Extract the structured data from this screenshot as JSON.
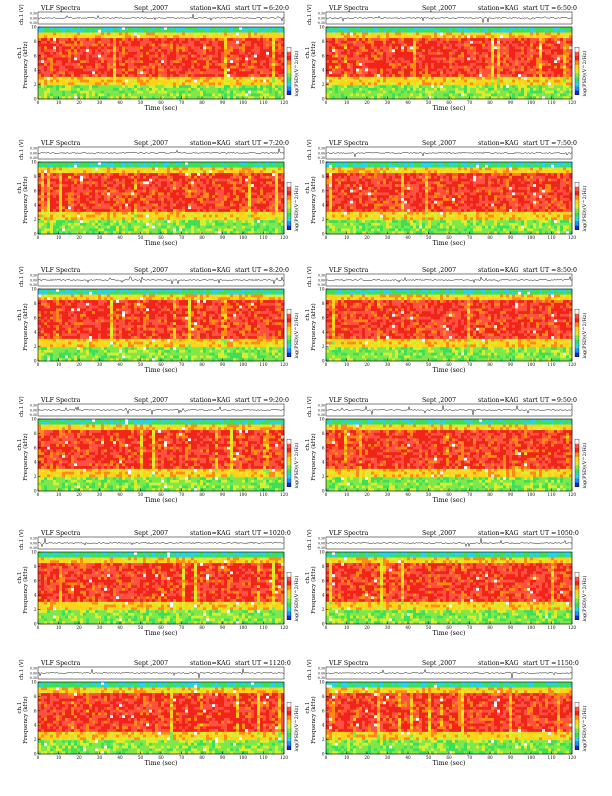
{
  "page": {
    "header": {
      "title": "VLF Spectra",
      "date": "Sept ,2007",
      "station": "station=KAG",
      "start_prefix": "start UT ="
    },
    "labels": {
      "waveform_axis": "ch.1 (V)",
      "waveform_ticks": [
        "0.30",
        "0.00",
        "-0.30"
      ],
      "freq_axis_upper": "ch.1",
      "freq_axis": "Frequency (kHz)",
      "time_axis": "Time (sec)",
      "colorbar_axis": "log(PSD)(V^2/Hz)"
    }
  },
  "chart_data": [
    {
      "type": "heatmap",
      "panel": 1,
      "start_ut": "6:20:0",
      "x": [
        0,
        120
      ],
      "ylim": [
        0,
        10
      ],
      "xticks": [
        0,
        10,
        20,
        30,
        40,
        50,
        60,
        70,
        80,
        90,
        100,
        110,
        120
      ],
      "yticks": [
        0,
        2,
        4,
        6,
        8,
        10
      ]
    },
    {
      "type": "heatmap",
      "panel": 2,
      "start_ut": "6:50:0",
      "x": [
        0,
        120
      ],
      "ylim": [
        0,
        10
      ],
      "xticks": [
        0,
        10,
        20,
        30,
        40,
        50,
        60,
        70,
        80,
        90,
        100,
        110,
        120
      ],
      "yticks": [
        0,
        2,
        4,
        6,
        8,
        10
      ]
    },
    {
      "type": "heatmap",
      "panel": 3,
      "start_ut": "7:20:0",
      "x": [
        0,
        120
      ],
      "ylim": [
        0,
        10
      ],
      "xticks": [
        0,
        10,
        20,
        30,
        40,
        50,
        60,
        70,
        80,
        90,
        100,
        110,
        120
      ],
      "yticks": [
        0,
        2,
        4,
        6,
        8,
        10
      ]
    },
    {
      "type": "heatmap",
      "panel": 4,
      "start_ut": "7:50:0",
      "x": [
        0,
        120
      ],
      "ylim": [
        0,
        10
      ],
      "xticks": [
        0,
        10,
        20,
        30,
        40,
        50,
        60,
        70,
        80,
        90,
        100,
        110,
        120
      ],
      "yticks": [
        0,
        2,
        4,
        6,
        8,
        10
      ]
    },
    {
      "type": "heatmap",
      "panel": 5,
      "start_ut": "8:20:0",
      "x": [
        0,
        120
      ],
      "ylim": [
        0,
        10
      ],
      "xticks": [
        0,
        10,
        20,
        30,
        40,
        50,
        60,
        70,
        80,
        90,
        100,
        110,
        120
      ],
      "yticks": [
        0,
        2,
        4,
        6,
        8,
        10
      ]
    },
    {
      "type": "heatmap",
      "panel": 6,
      "start_ut": "8:50:0",
      "x": [
        0,
        120
      ],
      "ylim": [
        0,
        10
      ],
      "xticks": [
        0,
        10,
        20,
        30,
        40,
        50,
        60,
        70,
        80,
        90,
        100,
        110,
        120
      ],
      "yticks": [
        0,
        2,
        4,
        6,
        8,
        10
      ]
    },
    {
      "type": "heatmap",
      "panel": 7,
      "start_ut": "9:20:0",
      "x": [
        0,
        120
      ],
      "ylim": [
        0,
        10
      ],
      "xticks": [
        0,
        10,
        20,
        30,
        40,
        50,
        60,
        70,
        80,
        90,
        100,
        110,
        120
      ],
      "yticks": [
        0,
        2,
        4,
        6,
        8,
        10
      ]
    },
    {
      "type": "heatmap",
      "panel": 8,
      "start_ut": "9:50:0",
      "x": [
        0,
        120
      ],
      "ylim": [
        0,
        10
      ],
      "xticks": [
        0,
        10,
        20,
        30,
        40,
        50,
        60,
        70,
        80,
        90,
        100,
        110,
        120
      ],
      "yticks": [
        0,
        2,
        4,
        6,
        8,
        10
      ]
    },
    {
      "type": "heatmap",
      "panel": 9,
      "start_ut": "1020:0",
      "x": [
        0,
        120
      ],
      "ylim": [
        0,
        10
      ],
      "xticks": [
        0,
        10,
        20,
        30,
        40,
        50,
        60,
        70,
        80,
        90,
        100,
        110,
        120
      ],
      "yticks": [
        0,
        2,
        4,
        6,
        8,
        10
      ]
    },
    {
      "type": "heatmap",
      "panel": 10,
      "start_ut": "1050:0",
      "x": [
        0,
        120
      ],
      "ylim": [
        0,
        10
      ],
      "xticks": [
        0,
        10,
        20,
        30,
        40,
        50,
        60,
        70,
        80,
        90,
        100,
        110,
        120
      ],
      "yticks": [
        0,
        2,
        4,
        6,
        8,
        10
      ]
    },
    {
      "type": "heatmap",
      "panel": 11,
      "start_ut": "1120:0",
      "x": [
        0,
        120
      ],
      "ylim": [
        0,
        10
      ],
      "xticks": [
        0,
        10,
        20,
        30,
        40,
        50,
        60,
        70,
        80,
        90,
        100,
        110,
        120
      ],
      "yticks": [
        0,
        2,
        4,
        6,
        8,
        10
      ]
    },
    {
      "type": "heatmap",
      "panel": 12,
      "start_ut": "1150:0",
      "x": [
        0,
        120
      ],
      "ylim": [
        0,
        10
      ],
      "xticks": [
        0,
        10,
        20,
        30,
        40,
        50,
        60,
        70,
        80,
        90,
        100,
        110,
        120
      ],
      "yticks": [
        0,
        2,
        4,
        6,
        8,
        10
      ]
    }
  ]
}
